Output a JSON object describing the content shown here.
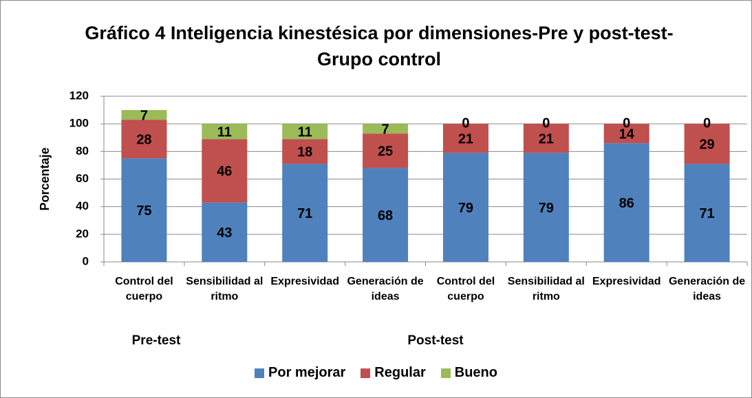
{
  "chart_data": {
    "type": "stacked_bar",
    "title": "Gráfico 4 Inteligencia kinestésica por dimensiones-Pre y post-test-Grupo control",
    "y_label": "Porcentaje",
    "categories": [
      "Control del cuerpo",
      "Sensibilidad al ritmo",
      "Expresividad",
      "Generación de ideas",
      "Control del cuerpo",
      "Sensibilidad al ritmo",
      "Expresividad",
      "Generación de ideas"
    ],
    "groups": [
      "Pre-test",
      "Post-test"
    ],
    "series": [
      {
        "name": "Por mejorar",
        "color": "#4f81bd",
        "values": [
          75,
          43,
          71,
          68,
          79,
          79,
          86,
          71
        ]
      },
      {
        "name": "Regular",
        "color": "#c0504d",
        "values": [
          28,
          46,
          18,
          25,
          21,
          21,
          14,
          29
        ]
      },
      {
        "name": "Bueno",
        "color": "#9bbb59",
        "values": [
          7,
          11,
          11,
          7,
          0,
          0,
          0,
          0
        ]
      }
    ],
    "ylim": [
      0,
      120
    ],
    "yticks": [
      0,
      20,
      40,
      60,
      80,
      100,
      120
    ],
    "grid": true,
    "legend": "bottom"
  }
}
